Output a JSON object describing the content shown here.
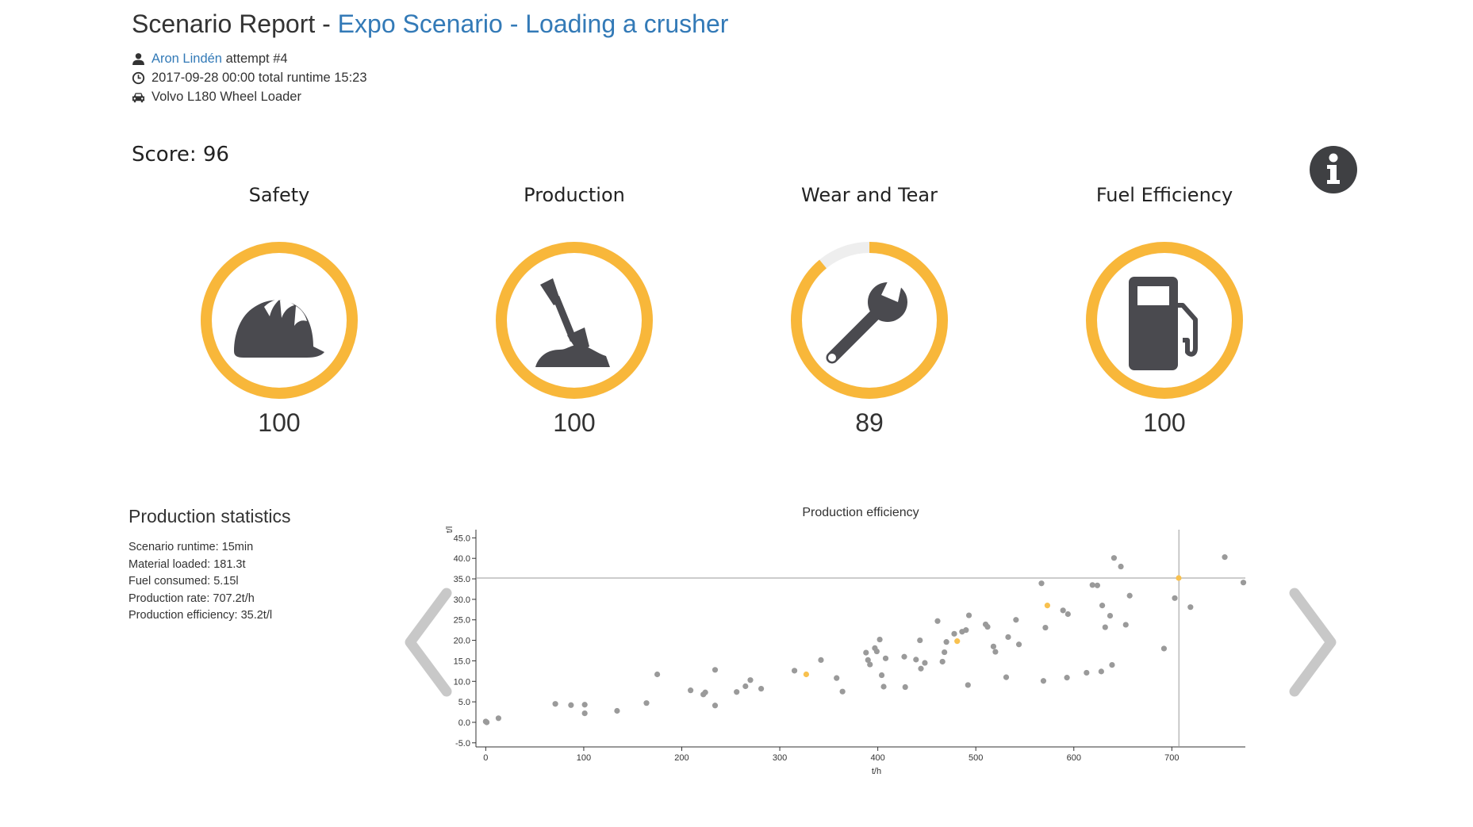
{
  "header": {
    "prefix": "Scenario Report - ",
    "scenario_link": "Expo Scenario - Loading a crusher",
    "user_name": "Aron Lindén",
    "attempt": "attempt #4",
    "datetime": "2017-09-28 00:00 total runtime 15:23",
    "machine": "Volvo L180 Wheel Loader"
  },
  "score": {
    "label": "Score:",
    "value": "96"
  },
  "categories": [
    {
      "name": "Safety",
      "value": "100",
      "score": 100,
      "icon": "hard-hat-icon"
    },
    {
      "name": "Production",
      "value": "100",
      "score": 100,
      "icon": "shovel-icon"
    },
    {
      "name": "Wear and Tear",
      "value": "89",
      "score": 89,
      "icon": "wrench-icon"
    },
    {
      "name": "Fuel Efficiency",
      "value": "100",
      "score": 100,
      "icon": "fuel-pump-icon"
    }
  ],
  "colors": {
    "accent": "#f8b73a",
    "ring_track": "#eeeeee",
    "icon": "#4a4a4f",
    "link": "#337ab7",
    "point": "#9a9a9a",
    "highlight": "#f8c14f"
  },
  "production_stats": {
    "title": "Production statistics",
    "lines": [
      "Scenario runtime: 15min",
      "Material loaded: 181.3t",
      "Fuel consumed: 5.15l",
      "Production rate: 707.2t/h",
      "Production efficiency: 35.2t/l"
    ]
  },
  "chart_data": {
    "type": "scatter",
    "title": "Production efficiency",
    "xlabel": "t/h",
    "ylabel": "t/l",
    "xlim": [
      -10,
      775
    ],
    "ylim": [
      -6,
      47
    ],
    "xticks": [
      "0",
      "100",
      "200",
      "300",
      "400",
      "500",
      "600",
      "700"
    ],
    "yticks": [
      "-5.0",
      "0.0",
      "5.0",
      "10.0",
      "15.0",
      "20.0",
      "25.0",
      "30.0",
      "35.0",
      "40.0",
      "45.0"
    ],
    "crosshair": {
      "x": 707.2,
      "y": 35.2
    },
    "series": [
      {
        "values": [
          [
            0,
            0.2
          ],
          [
            1,
            0
          ],
          [
            13,
            1
          ],
          [
            71,
            4.5
          ],
          [
            87,
            4.2
          ],
          [
            101,
            4.3
          ],
          [
            101,
            2.2
          ],
          [
            134,
            2.8
          ],
          [
            164,
            4.7
          ],
          [
            175,
            11.7
          ],
          [
            209,
            7.8
          ],
          [
            222,
            6.8
          ],
          [
            224,
            7.3
          ],
          [
            234,
            12.8
          ],
          [
            234,
            4.1
          ],
          [
            256,
            7.4
          ],
          [
            265,
            8.8
          ],
          [
            270,
            10.3
          ],
          [
            281,
            8.2
          ],
          [
            315,
            12.6
          ],
          [
            342,
            15.2
          ],
          [
            358,
            10.8
          ],
          [
            364,
            7.5
          ],
          [
            388,
            17
          ],
          [
            390,
            15.2
          ],
          [
            392,
            14.1
          ],
          [
            397,
            18.1
          ],
          [
            399,
            17.3
          ],
          [
            402,
            20.2
          ],
          [
            404,
            11.5
          ],
          [
            406,
            8.7
          ],
          [
            408,
            15.6
          ],
          [
            427,
            16
          ],
          [
            428,
            8.6
          ],
          [
            439,
            15.3
          ],
          [
            443,
            20
          ],
          [
            444,
            13.1
          ],
          [
            448,
            14.5
          ],
          [
            461,
            24.7
          ],
          [
            466,
            14.8
          ],
          [
            468,
            17.1
          ],
          [
            470,
            19.6
          ],
          [
            478,
            21.6
          ],
          [
            486,
            22.1
          ],
          [
            490,
            22.5
          ],
          [
            492,
            9.1
          ],
          [
            493,
            26.1
          ],
          [
            510,
            23.9
          ],
          [
            512,
            23.3
          ],
          [
            518,
            18.5
          ],
          [
            520,
            17.2
          ],
          [
            531,
            11
          ],
          [
            533,
            20.8
          ],
          [
            541,
            25
          ],
          [
            544,
            19
          ],
          [
            567,
            33.9
          ],
          [
            569,
            10.1
          ],
          [
            571,
            23.1
          ],
          [
            589,
            27.3
          ],
          [
            593,
            10.9
          ],
          [
            594,
            26.4
          ],
          [
            613,
            12.1
          ],
          [
            619,
            33.5
          ],
          [
            624,
            33.4
          ],
          [
            628,
            12.4
          ],
          [
            629,
            28.5
          ],
          [
            632,
            23.2
          ],
          [
            637,
            26
          ],
          [
            639,
            14
          ],
          [
            641,
            40.1
          ],
          [
            648,
            38
          ],
          [
            653,
            23.8
          ],
          [
            657,
            30.9
          ],
          [
            692,
            18
          ],
          [
            703,
            30.3
          ],
          [
            719,
            28.1
          ],
          [
            754,
            40.3
          ],
          [
            773,
            34.1
          ]
        ]
      },
      {
        "values": [
          [
            327,
            11.7
          ],
          [
            481,
            19.8
          ],
          [
            573,
            28.5
          ],
          [
            707,
            35.2
          ]
        ]
      }
    ]
  }
}
